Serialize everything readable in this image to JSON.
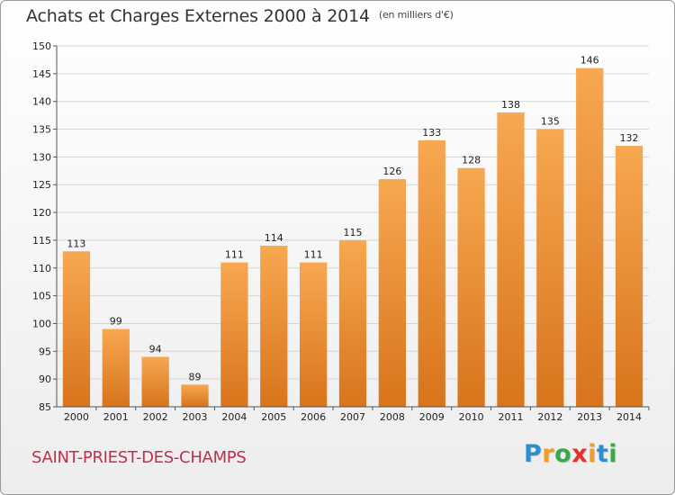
{
  "header": {
    "title": "Achats et Charges Externes 2000 à 2014",
    "unit": "(en milliers d'€)"
  },
  "footer": {
    "commune": "SAINT-PRIEST-DES-CHAMPS",
    "logo_letters": [
      {
        "ch": "P",
        "color": "#2a8fd0"
      },
      {
        "ch": "r",
        "color": "#f39c1f"
      },
      {
        "ch": "o",
        "color": "#3aa84a"
      },
      {
        "ch": "x",
        "color": "#e2332a"
      },
      {
        "ch": "i",
        "color": "#f39c1f"
      },
      {
        "ch": "t",
        "color": "#2a8fd0"
      },
      {
        "ch": "i",
        "color": "#3aa84a"
      }
    ]
  },
  "colors": {
    "bar_light": "#f7a850",
    "bar_dark": "#d8741c",
    "grid": "#d6d6d6",
    "axis": "#555555"
  },
  "chart_data": {
    "type": "bar",
    "categories": [
      "2000",
      "2001",
      "2002",
      "2003",
      "2004",
      "2005",
      "2006",
      "2007",
      "2008",
      "2009",
      "2010",
      "2011",
      "2012",
      "2013",
      "2014"
    ],
    "values": [
      113,
      99,
      94,
      89,
      111,
      114,
      111,
      115,
      126,
      133,
      128,
      138,
      135,
      146,
      132
    ],
    "title": "Achats et Charges Externes 2000 à 2014",
    "ylim": [
      85,
      150
    ],
    "yticks": [
      85,
      90,
      95,
      100,
      105,
      110,
      115,
      120,
      125,
      130,
      135,
      140,
      145,
      150
    ],
    "grid": true,
    "legend": "none"
  }
}
